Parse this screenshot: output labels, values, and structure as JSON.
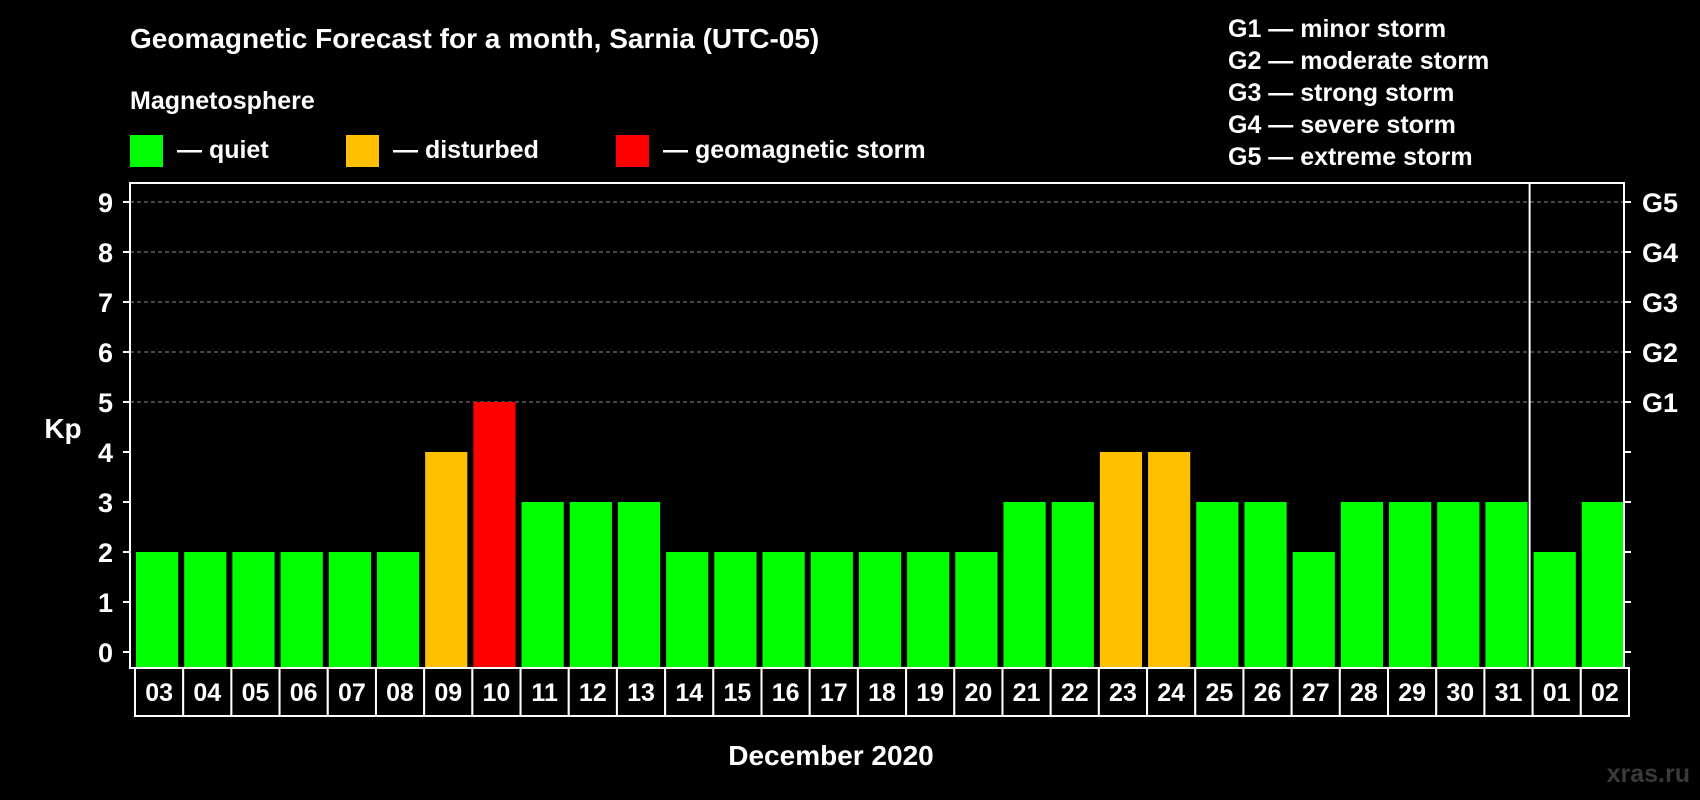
{
  "chart_data": {
    "type": "bar",
    "title": "Geomagnetic Forecast for a month, Sarnia (UTC-05)",
    "subtitle": "Magnetosphere",
    "xlabel": "December 2020",
    "ylabel": "Kp",
    "ylim": [
      0,
      9
    ],
    "yticks": [
      "0",
      "1",
      "2",
      "3",
      "4",
      "5",
      "6",
      "7",
      "8",
      "9"
    ],
    "grid": true,
    "categories": [
      "03",
      "04",
      "05",
      "06",
      "07",
      "08",
      "09",
      "10",
      "11",
      "12",
      "13",
      "14",
      "15",
      "16",
      "17",
      "18",
      "19",
      "20",
      "21",
      "22",
      "23",
      "24",
      "25",
      "26",
      "27",
      "28",
      "29",
      "30",
      "31",
      "01",
      "02"
    ],
    "values": [
      2,
      2,
      2,
      2,
      2,
      2,
      4,
      5,
      3,
      3,
      3,
      2,
      2,
      2,
      2,
      2,
      2,
      2,
      3,
      3,
      4,
      4,
      3,
      3,
      2,
      3,
      3,
      3,
      3,
      2,
      3
    ],
    "month_divider_after": "31",
    "levels": [
      {
        "label": "— quiet",
        "color": "#00ff00",
        "kp_below": 4
      },
      {
        "label": "— disturbed",
        "color": "#ffc000",
        "kp_from": 4
      },
      {
        "label": "— geomagnetic storm",
        "color": "#ff0000",
        "kp_from": 5
      }
    ],
    "g_scale_axis": [
      {
        "kp": 5,
        "label": "G1"
      },
      {
        "kp": 6,
        "label": "G2"
      },
      {
        "kp": 7,
        "label": "G3"
      },
      {
        "kp": 8,
        "label": "G4"
      },
      {
        "kp": 9,
        "label": "G5"
      }
    ],
    "g_scale_legend": [
      "G1 — minor storm",
      "G2 — moderate storm",
      "G3 — strong storm",
      "G4 — severe storm",
      "G5 — extreme storm"
    ],
    "watermark": "xras.ru"
  }
}
